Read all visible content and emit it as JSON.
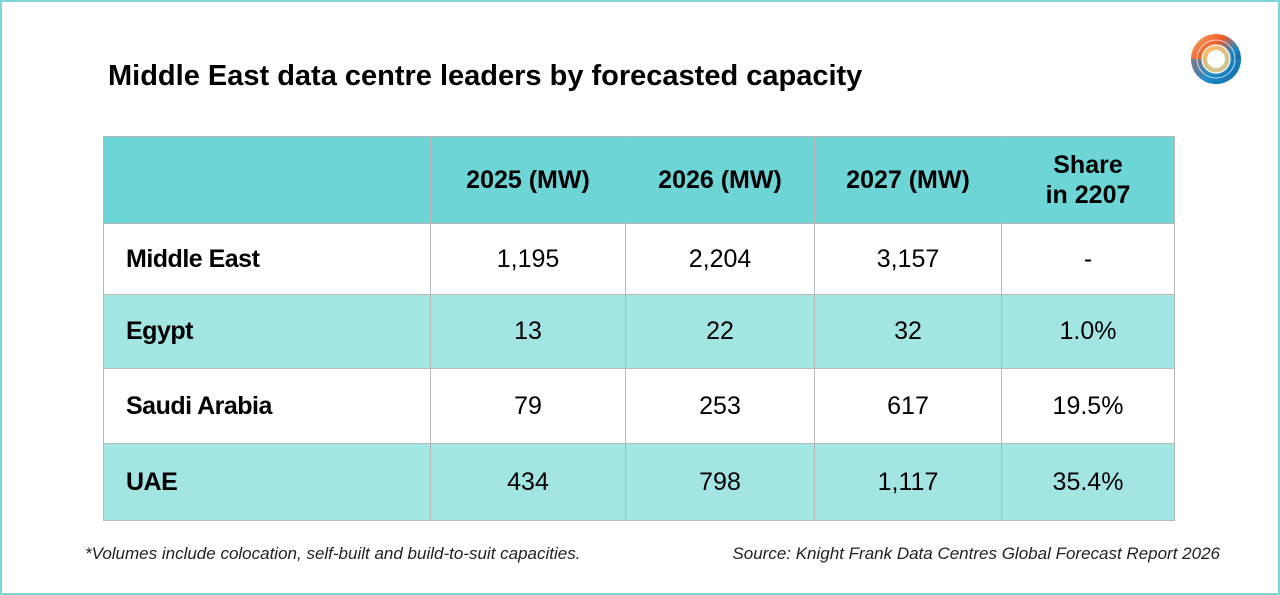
{
  "title": "Middle East data centre leaders by forecasted capacity",
  "headers": [
    "",
    "2025 (MW)",
    "2026 (MW)",
    "2027 (MW)",
    "Share in 2207"
  ],
  "rows": [
    {
      "name": "Middle East",
      "v2025": "1,195",
      "v2026": "2,204",
      "v2027": "3,157",
      "share": "-"
    },
    {
      "name": "Egypt",
      "v2025": "13",
      "v2026": "22",
      "v2027": "32",
      "share": "1.0%"
    },
    {
      "name": "Saudi Arabia",
      "v2025": "79",
      "v2026": "253",
      "v2027": "617",
      "share": "19.5%"
    },
    {
      "name": "UAE",
      "v2025": "434",
      "v2026": "798",
      "v2027": "1,117",
      "share": "35.4%"
    }
  ],
  "footnote": "*Volumes include colocation, self-built and build-to-suit capacities.",
  "source": "Source: Knight Frank Data Centres Global Forecast Report 2026",
  "colors": {
    "header": "#6dd5d6",
    "alt_row": "#a3e5e3",
    "frame": "#7fd6d4"
  }
}
